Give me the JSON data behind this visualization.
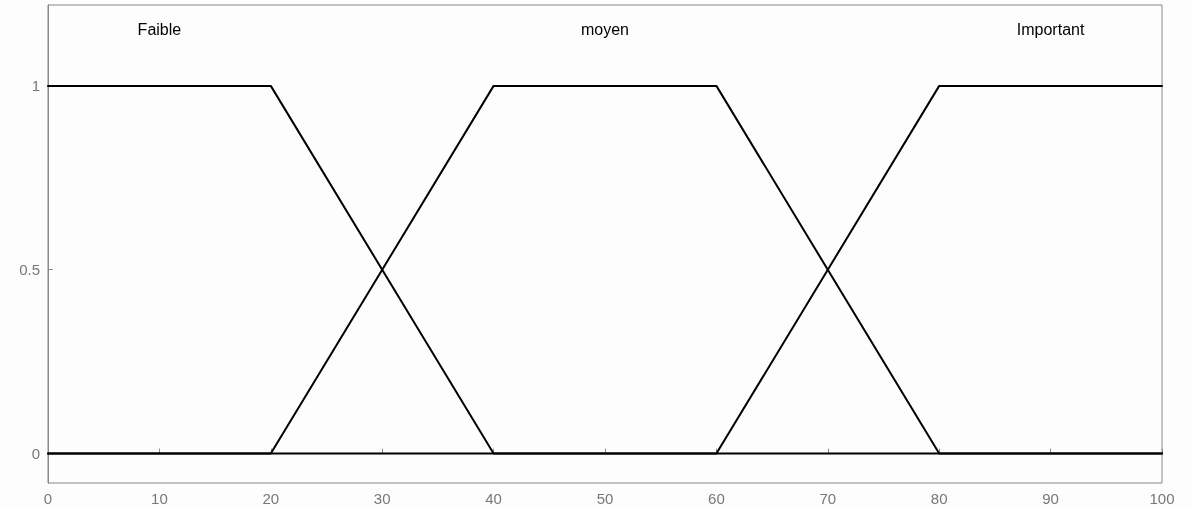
{
  "chart_data": {
    "type": "line",
    "xlim": [
      0,
      100
    ],
    "xticks": [
      0,
      10,
      20,
      30,
      40,
      50,
      60,
      70,
      80,
      90,
      100
    ],
    "ylim": [
      -0.08,
      1.22
    ],
    "yticks": [
      0,
      0.5,
      1
    ],
    "grid": false,
    "legend": false,
    "marker": "none",
    "line_style": "solid",
    "series": [
      {
        "name": "Faible",
        "color": "#000000",
        "x": [
          0,
          20,
          40,
          100
        ],
        "values": [
          1,
          1,
          0,
          0
        ]
      },
      {
        "name": "moyen",
        "color": "#000000",
        "x": [
          0,
          20,
          40,
          60,
          80,
          100
        ],
        "values": [
          0,
          0,
          1,
          1,
          0,
          0
        ]
      },
      {
        "name": "Important",
        "color": "#000000",
        "x": [
          0,
          60,
          80,
          100
        ],
        "values": [
          0,
          0,
          1,
          1
        ]
      }
    ]
  }
}
